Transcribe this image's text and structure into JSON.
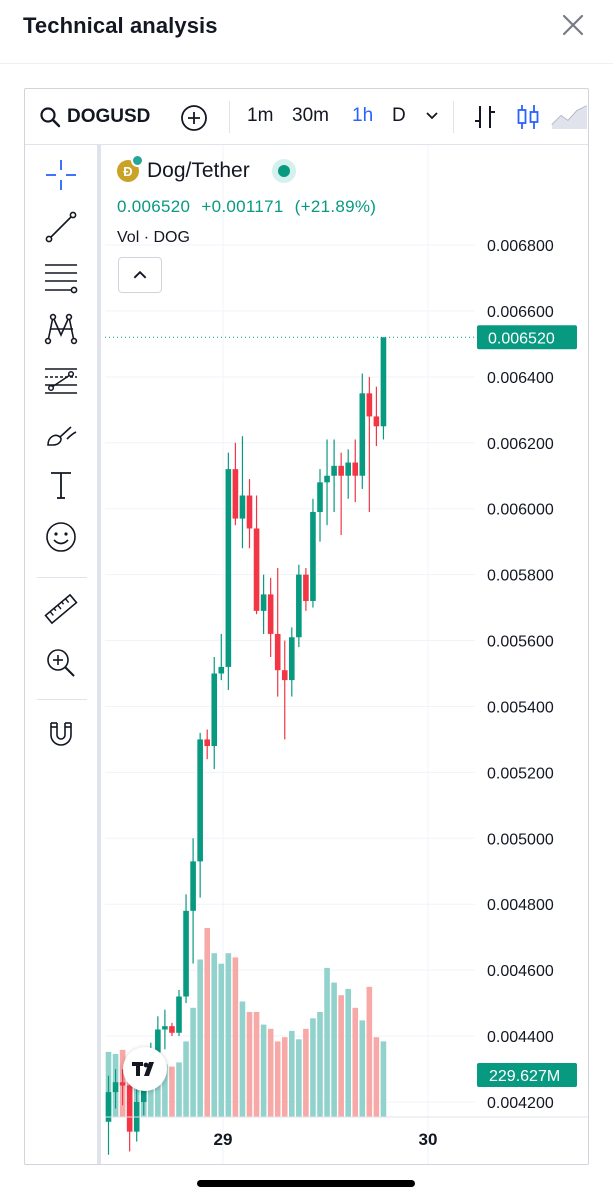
{
  "header": {
    "title": "Technical analysis"
  },
  "toolbar": {
    "symbol": "DOGUSD",
    "intervals": [
      "1m",
      "30m",
      "1h",
      "D"
    ],
    "active_interval": "1h"
  },
  "legend": {
    "name": "Dog/Tether",
    "coin_letter": "Ð",
    "price": "0.006520",
    "change": "+0.001171",
    "change_pct": "(+21.89%)",
    "volume_label": "Vol · DOG"
  },
  "colors": {
    "up": "#089981",
    "down": "#f23645",
    "vol_up": "#92d2cc",
    "vol_down": "#f7a9a7",
    "accent": "#2962ff"
  },
  "chart_data": {
    "type": "candlestick",
    "price_axis": [
      "0.006800",
      "0.006600",
      "0.006400",
      "0.006200",
      "0.006000",
      "0.005800",
      "0.005600",
      "0.005400",
      "0.005200",
      "0.005000",
      "0.004800",
      "0.004600",
      "0.004400",
      "0.004200"
    ],
    "ylim": [
      0.004,
      0.0068
    ],
    "x_ticks": [
      "29",
      "30"
    ],
    "last_price_label": "0.006520",
    "volume_label": "229.627M",
    "candles": [
      {
        "o": 0.00414,
        "h": 0.00428,
        "l": 0.00404,
        "c": 0.00423
      },
      {
        "o": 0.00423,
        "h": 0.0043,
        "l": 0.00418,
        "c": 0.00426
      },
      {
        "o": 0.00426,
        "h": 0.0043,
        "l": 0.00419,
        "c": 0.00425
      },
      {
        "o": 0.00425,
        "h": 0.00428,
        "l": 0.00405,
        "c": 0.00411
      },
      {
        "o": 0.00411,
        "h": 0.00425,
        "l": 0.00408,
        "c": 0.0042
      },
      {
        "o": 0.0042,
        "h": 0.00432,
        "l": 0.00416,
        "c": 0.00429
      },
      {
        "o": 0.00429,
        "h": 0.00438,
        "l": 0.00424,
        "c": 0.00435
      },
      {
        "o": 0.00435,
        "h": 0.00446,
        "l": 0.0043,
        "c": 0.00442
      },
      {
        "o": 0.00442,
        "h": 0.00448,
        "l": 0.00436,
        "c": 0.00443
      },
      {
        "o": 0.00443,
        "h": 0.00444,
        "l": 0.0044,
        "c": 0.00441
      },
      {
        "o": 0.00441,
        "h": 0.00454,
        "l": 0.0044,
        "c": 0.00452
      },
      {
        "o": 0.00452,
        "h": 0.00483,
        "l": 0.0045,
        "c": 0.00478
      },
      {
        "o": 0.00478,
        "h": 0.005,
        "l": 0.00462,
        "c": 0.00493
      },
      {
        "o": 0.00493,
        "h": 0.00532,
        "l": 0.00482,
        "c": 0.0053
      },
      {
        "o": 0.0053,
        "h": 0.00533,
        "l": 0.00524,
        "c": 0.00528
      },
      {
        "o": 0.00528,
        "h": 0.00555,
        "l": 0.00521,
        "c": 0.0055
      },
      {
        "o": 0.0055,
        "h": 0.00562,
        "l": 0.00548,
        "c": 0.00552
      },
      {
        "o": 0.00552,
        "h": 0.00617,
        "l": 0.00545,
        "c": 0.00612
      },
      {
        "o": 0.00612,
        "h": 0.0062,
        "l": 0.00595,
        "c": 0.00597
      },
      {
        "o": 0.00597,
        "h": 0.00622,
        "l": 0.00588,
        "c": 0.00604
      },
      {
        "o": 0.00604,
        "h": 0.00609,
        "l": 0.00588,
        "c": 0.00594
      },
      {
        "o": 0.00594,
        "h": 0.00604,
        "l": 0.00568,
        "c": 0.00569
      },
      {
        "o": 0.00569,
        "h": 0.0058,
        "l": 0.00562,
        "c": 0.00574
      },
      {
        "o": 0.00574,
        "h": 0.00579,
        "l": 0.00555,
        "c": 0.00562
      },
      {
        "o": 0.00562,
        "h": 0.00582,
        "l": 0.00543,
        "c": 0.00551
      },
      {
        "o": 0.00551,
        "h": 0.0056,
        "l": 0.0053,
        "c": 0.00548
      },
      {
        "o": 0.00548,
        "h": 0.00564,
        "l": 0.00543,
        "c": 0.00561
      },
      {
        "o": 0.00561,
        "h": 0.00583,
        "l": 0.00558,
        "c": 0.0058
      },
      {
        "o": 0.0058,
        "h": 0.00582,
        "l": 0.00569,
        "c": 0.00572
      },
      {
        "o": 0.00572,
        "h": 0.00603,
        "l": 0.0057,
        "c": 0.00599
      },
      {
        "o": 0.00599,
        "h": 0.00612,
        "l": 0.0059,
        "c": 0.00608
      },
      {
        "o": 0.00608,
        "h": 0.00621,
        "l": 0.00595,
        "c": 0.0061
      },
      {
        "o": 0.0061,
        "h": 0.00621,
        "l": 0.00599,
        "c": 0.00613
      },
      {
        "o": 0.00613,
        "h": 0.00617,
        "l": 0.00592,
        "c": 0.0061
      },
      {
        "o": 0.0061,
        "h": 0.00618,
        "l": 0.00603,
        "c": 0.00614
      },
      {
        "o": 0.00614,
        "h": 0.00621,
        "l": 0.00602,
        "c": 0.0061
      },
      {
        "o": 0.0061,
        "h": 0.00641,
        "l": 0.00606,
        "c": 0.00635
      },
      {
        "o": 0.00635,
        "h": 0.0064,
        "l": 0.00599,
        "c": 0.00628
      },
      {
        "o": 0.00628,
        "h": 0.00637,
        "l": 0.00619,
        "c": 0.00625
      },
      {
        "o": 0.00625,
        "h": 0.00652,
        "l": 0.00621,
        "c": 0.00652
      }
    ],
    "volume": [
      31,
      30,
      32,
      28,
      26,
      25,
      24,
      23,
      25,
      24,
      26,
      36,
      52,
      75,
      90,
      78,
      73,
      78,
      76,
      55,
      50,
      50,
      44,
      42,
      36,
      38,
      41,
      37,
      42,
      47,
      50,
      71,
      64,
      58,
      61,
      52,
      46,
      62,
      38,
      36
    ],
    "vol_ylim": [
      0,
      100
    ]
  }
}
